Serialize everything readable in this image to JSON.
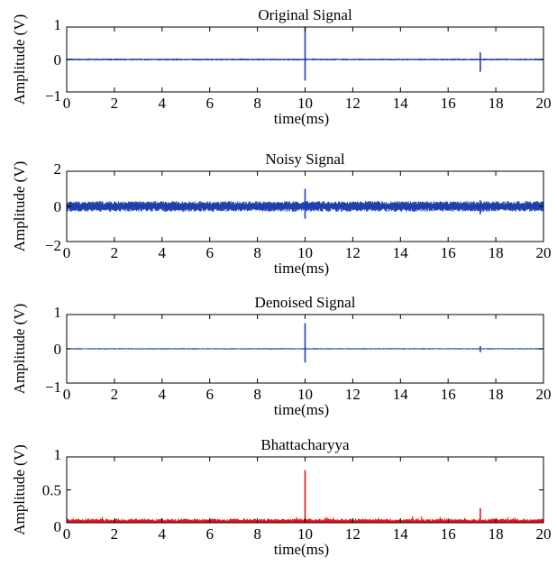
{
  "chart_data": [
    {
      "type": "line",
      "title": "Original Signal",
      "xlabel": "time(ms)",
      "ylabel": "Amplitude (V)",
      "xlim": [
        0,
        20
      ],
      "ylim": [
        -1,
        1
      ],
      "xticks": [
        0,
        2,
        4,
        6,
        8,
        10,
        12,
        14,
        16,
        18,
        20
      ],
      "yticks": [
        -1,
        0,
        1
      ],
      "grid": false,
      "series": [
        {
          "color": "#1f3fae",
          "baseline": 0,
          "noise_amplitude": 0.03,
          "spikes": [
            {
              "x": 10.0,
              "max": 1.0,
              "min": -0.65
            },
            {
              "x": 17.35,
              "max": 0.22,
              "min": -0.38
            }
          ]
        }
      ]
    },
    {
      "type": "line",
      "title": "Noisy Signal",
      "xlabel": "time(ms)",
      "ylabel": "Amplitude (V)",
      "xlim": [
        0,
        20
      ],
      "ylim": [
        -2,
        2
      ],
      "xticks": [
        0,
        2,
        4,
        6,
        8,
        10,
        12,
        14,
        16,
        18,
        20
      ],
      "yticks": [
        -2,
        0,
        2
      ],
      "grid": false,
      "series": [
        {
          "color": "#1f3fae",
          "baseline": 0,
          "noise_amplitude": 0.3,
          "spikes": [
            {
              "x": 10.0,
              "max": 1.0,
              "min": -0.7
            },
            {
              "x": 17.35,
              "max": 0.35,
              "min": -0.45
            }
          ]
        }
      ]
    },
    {
      "type": "line",
      "title": "Denoised Signal",
      "xlabel": "time(ms)",
      "ylabel": "Amplitude (V)",
      "xlim": [
        0,
        20
      ],
      "ylim": [
        -1,
        1
      ],
      "xticks": [
        0,
        2,
        4,
        6,
        8,
        10,
        12,
        14,
        16,
        18,
        20
      ],
      "yticks": [
        -1,
        0,
        1
      ],
      "grid": false,
      "series": [
        {
          "color": "#1f3fae",
          "baseline": 0,
          "noise_amplitude": 0.02,
          "spikes": [
            {
              "x": 10.0,
              "max": 0.75,
              "min": -0.4
            },
            {
              "x": 17.35,
              "max": 0.08,
              "min": -0.1
            }
          ]
        }
      ]
    },
    {
      "type": "area",
      "title": "Bhattacharyya",
      "xlabel": "time(ms)",
      "ylabel": "Amplitude (V)",
      "xlim": [
        0,
        20
      ],
      "ylim": [
        0,
        1
      ],
      "xticks": [
        0,
        2,
        4,
        6,
        8,
        10,
        12,
        14,
        16,
        18,
        20
      ],
      "yticks": [
        0,
        0.5,
        1
      ],
      "grid": false,
      "series": [
        {
          "color": "#e8141b",
          "baseline": 0,
          "noise_amplitude": 0.06,
          "spikes": [
            {
              "x": 10.0,
              "max": 0.8,
              "min": 0
            },
            {
              "x": 17.35,
              "max": 0.22,
              "min": 0
            }
          ]
        }
      ]
    }
  ]
}
